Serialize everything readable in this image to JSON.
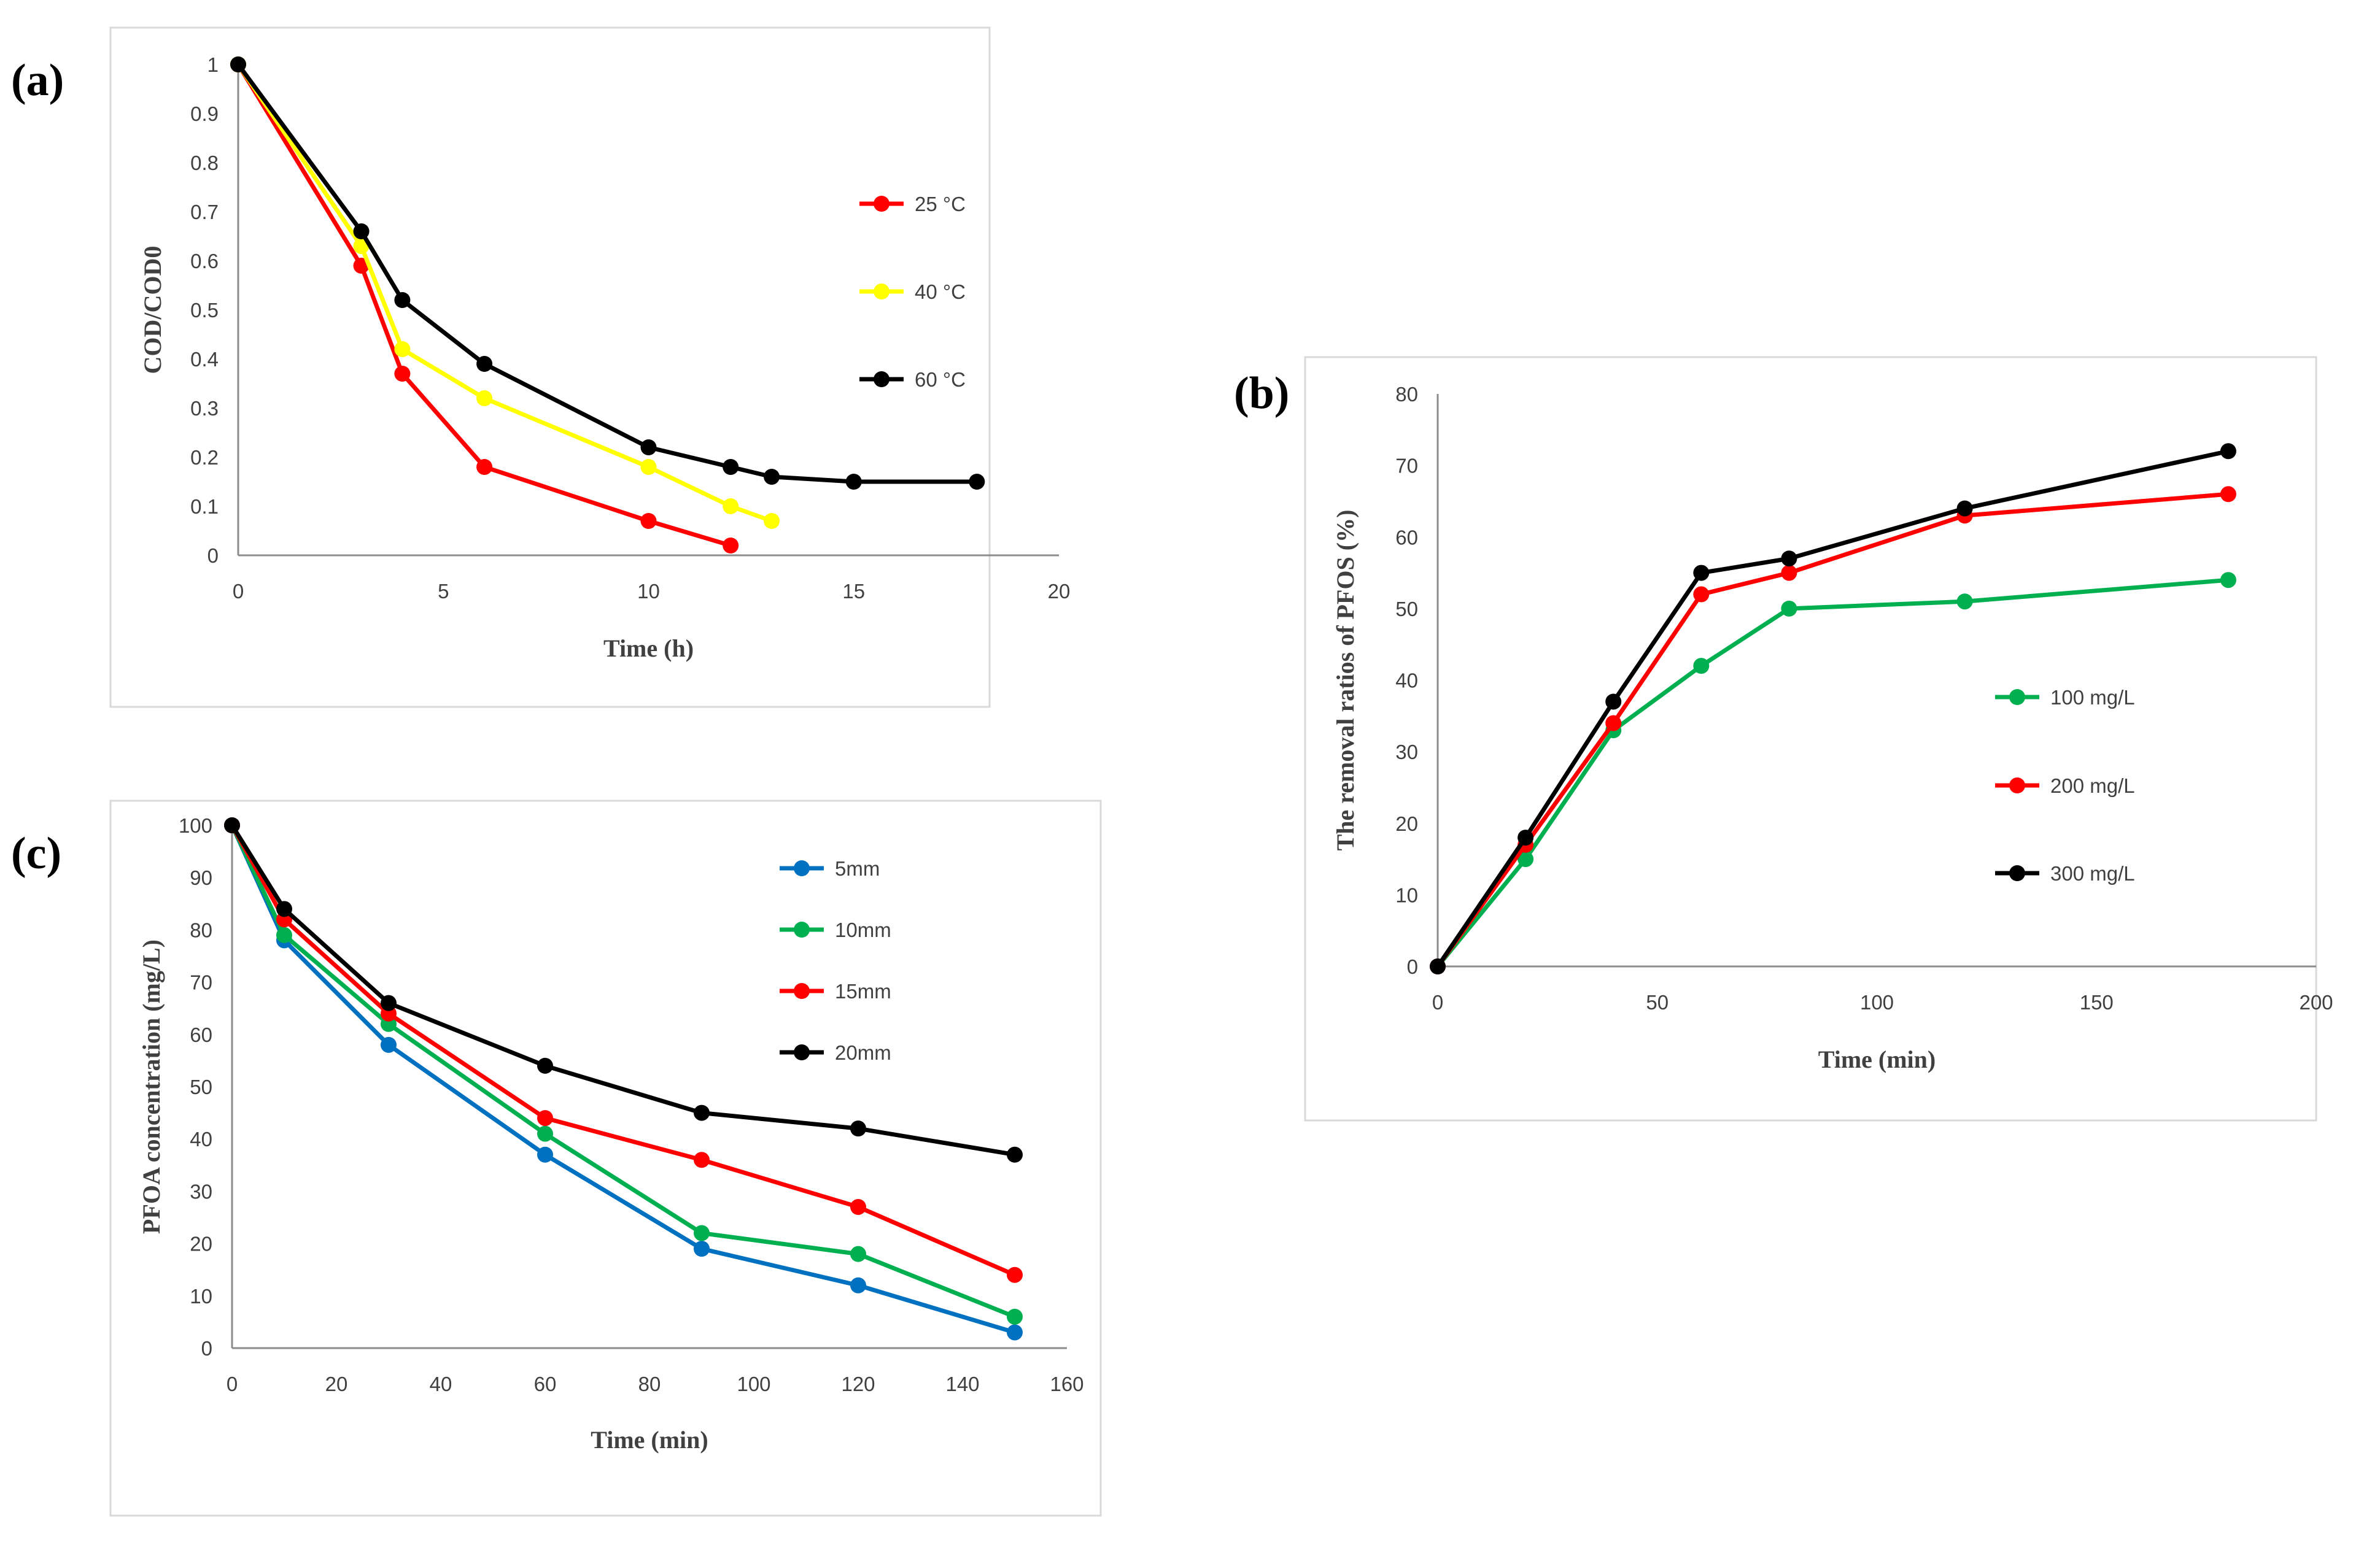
{
  "chart_data": [
    {
      "id": "a",
      "panel_label": "(a)",
      "type": "line",
      "xlabel": "Time (h)",
      "ylabel": "COD/COD0",
      "xlim": [
        0,
        20
      ],
      "ylim": [
        0,
        1
      ],
      "xticks": [
        0,
        5,
        10,
        15,
        20
      ],
      "yticks": [
        0,
        0.1,
        0.2,
        0.3,
        0.4,
        0.5,
        0.6,
        0.7,
        0.8,
        0.9,
        1
      ],
      "xtick_labels": [
        "0",
        "5",
        "10",
        "15",
        "20"
      ],
      "ytick_labels": [
        "0",
        "0.1",
        "0.2",
        "0.3",
        "0.4",
        "0.5",
        "0.6",
        "0.7",
        "0.8",
        "0.9",
        "1"
      ],
      "legend_position": "right",
      "series": [
        {
          "name": "25 °C",
          "color": "#ff0000",
          "x": [
            0,
            3,
            4,
            6,
            10,
            12
          ],
          "y": [
            1,
            0.59,
            0.37,
            0.18,
            0.07,
            0.02
          ]
        },
        {
          "name": "40 °C",
          "color": "#ffff00",
          "x": [
            0,
            3,
            4,
            6,
            10,
            12,
            13
          ],
          "y": [
            1,
            0.63,
            0.42,
            0.32,
            0.18,
            0.1,
            0.07
          ]
        },
        {
          "name": "60 °C",
          "color": "#000000",
          "x": [
            0,
            3,
            4,
            6,
            10,
            12,
            13,
            15,
            18
          ],
          "y": [
            1,
            0.66,
            0.52,
            0.39,
            0.22,
            0.18,
            0.16,
            0.15,
            0.15
          ]
        }
      ]
    },
    {
      "id": "b",
      "panel_label": "(b)",
      "type": "line",
      "xlabel": "Time (min)",
      "ylabel": "The removal ratios of PFOS (%)",
      "xlim": [
        0,
        200
      ],
      "ylim": [
        0,
        80
      ],
      "xticks": [
        0,
        50,
        100,
        150,
        200
      ],
      "yticks": [
        0,
        10,
        20,
        30,
        40,
        50,
        60,
        70,
        80
      ],
      "xtick_labels": [
        "0",
        "50",
        "100",
        "150",
        "200"
      ],
      "ytick_labels": [
        "0",
        "10",
        "20",
        "30",
        "40",
        "50",
        "60",
        "70",
        "80"
      ],
      "legend_position": "right",
      "series": [
        {
          "name": "100 mg/L",
          "color": "#00b050",
          "x": [
            0,
            20,
            40,
            60,
            80,
            120,
            180
          ],
          "y": [
            0,
            15,
            33,
            42,
            50,
            51,
            54
          ]
        },
        {
          "name": "200 mg/L",
          "color": "#ff0000",
          "x": [
            0,
            20,
            40,
            60,
            80,
            120,
            180
          ],
          "y": [
            0,
            17,
            34,
            52,
            55,
            63,
            66
          ]
        },
        {
          "name": "300 mg/L",
          "color": "#000000",
          "x": [
            0,
            20,
            40,
            60,
            80,
            120,
            180
          ],
          "y": [
            0,
            18,
            37,
            55,
            57,
            64,
            72
          ]
        }
      ]
    },
    {
      "id": "c",
      "panel_label": "(c)",
      "type": "line",
      "xlabel": "Time (min)",
      "ylabel": "PFOA concentration (mg/L)",
      "xlim": [
        0,
        160
      ],
      "ylim": [
        0,
        100
      ],
      "xticks": [
        0,
        20,
        40,
        60,
        80,
        100,
        120,
        140,
        160
      ],
      "yticks": [
        0,
        10,
        20,
        30,
        40,
        50,
        60,
        70,
        80,
        90,
        100
      ],
      "xtick_labels": [
        "0",
        "20",
        "40",
        "60",
        "80",
        "100",
        "120",
        "140",
        "160"
      ],
      "ytick_labels": [
        "0",
        "10",
        "20",
        "30",
        "40",
        "50",
        "60",
        "70",
        "80",
        "90",
        "100"
      ],
      "legend_position": "top-right",
      "series": [
        {
          "name": "5mm",
          "color": "#0070c0",
          "x": [
            0,
            10,
            30,
            60,
            90,
            120,
            150
          ],
          "y": [
            100,
            78,
            58,
            37,
            19,
            12,
            3
          ]
        },
        {
          "name": "10mm",
          "color": "#00b050",
          "x": [
            0,
            10,
            30,
            60,
            90,
            120,
            150
          ],
          "y": [
            100,
            79,
            62,
            41,
            22,
            18,
            6
          ]
        },
        {
          "name": "15mm",
          "color": "#ff0000",
          "x": [
            0,
            10,
            30,
            60,
            90,
            120,
            150
          ],
          "y": [
            100,
            82,
            64,
            44,
            36,
            27,
            14
          ]
        },
        {
          "name": "20mm",
          "color": "#000000",
          "x": [
            0,
            10,
            30,
            60,
            90,
            120,
            150
          ],
          "y": [
            100,
            84,
            66,
            54,
            45,
            42,
            37
          ]
        }
      ]
    }
  ]
}
